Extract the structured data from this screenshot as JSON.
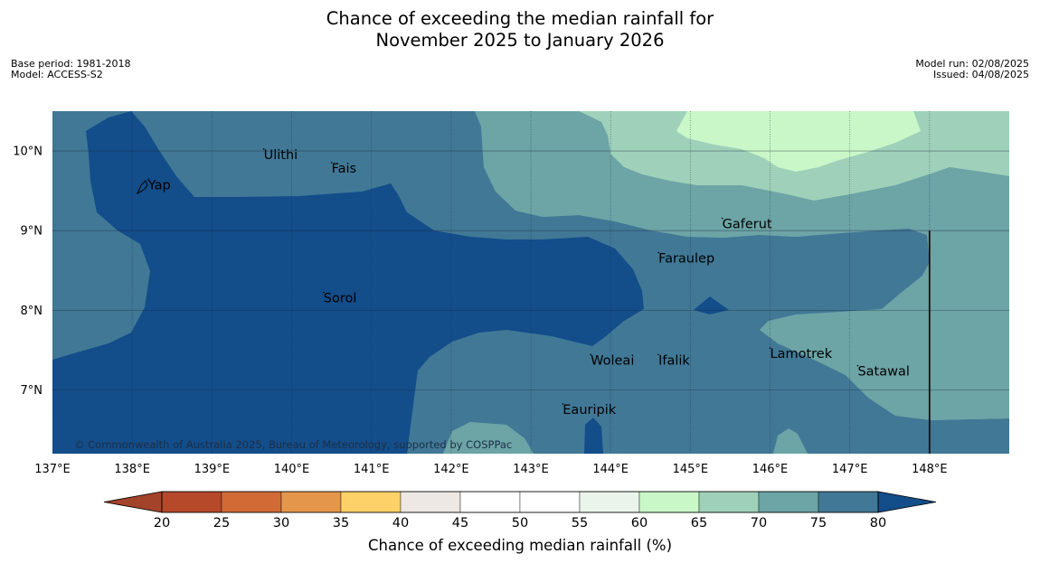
{
  "title": {
    "line1": "Chance of exceeding the median rainfall for",
    "line2": "November 2025 to January 2026"
  },
  "meta_left": [
    "Base period: 1981-2018",
    "Model: ACCESS-S2"
  ],
  "meta_right": [
    "Model run: 02/08/2025",
    "Issued: 04/08/2025"
  ],
  "map": {
    "lon_range": [
      137,
      149
    ],
    "lat_range": [
      6.2,
      10.5
    ],
    "lon_ticks": [
      {
        "value": 137,
        "label": "137°E"
      },
      {
        "value": 138,
        "label": "138°E"
      },
      {
        "value": 139,
        "label": "139°E"
      },
      {
        "value": 140,
        "label": "140°E"
      },
      {
        "value": 141,
        "label": "141°E"
      },
      {
        "value": 142,
        "label": "142°E"
      },
      {
        "value": 143,
        "label": "143°E"
      },
      {
        "value": 144,
        "label": "144°E"
      },
      {
        "value": 145,
        "label": "145°E"
      },
      {
        "value": 146,
        "label": "146°E"
      },
      {
        "value": 147,
        "label": "147°E"
      },
      {
        "value": 148,
        "label": "148°E"
      }
    ],
    "lat_ticks": [
      {
        "value": 10,
        "label": "10°N"
      },
      {
        "value": 9,
        "label": "9°N"
      },
      {
        "value": 8,
        "label": "8°N"
      },
      {
        "value": 7,
        "label": "7°N"
      }
    ],
    "places": [
      {
        "name": "Yap",
        "lon": 138.2,
        "lat": 9.52
      },
      {
        "name": "Ulithi",
        "lon": 139.65,
        "lat": 9.9
      },
      {
        "name": "Fais",
        "lon": 140.5,
        "lat": 9.73
      },
      {
        "name": "Gaferut",
        "lon": 145.4,
        "lat": 9.03
      },
      {
        "name": "Faraulep",
        "lon": 144.6,
        "lat": 8.6
      },
      {
        "name": "Sorol",
        "lon": 140.4,
        "lat": 8.1
      },
      {
        "name": "Lamotrek",
        "lon": 146.0,
        "lat": 7.4
      },
      {
        "name": "Woleai",
        "lon": 143.75,
        "lat": 7.32
      },
      {
        "name": "Ifalik",
        "lon": 144.6,
        "lat": 7.32
      },
      {
        "name": "Satawal",
        "lon": 147.1,
        "lat": 7.18
      },
      {
        "name": "Eauripik",
        "lon": 143.4,
        "lat": 6.7
      }
    ],
    "boundary_line": {
      "lon": 148,
      "lat_from": 6.2,
      "lat_to": 9.0
    },
    "copyright": "© Commonwealth of Australia 2025, Bureau of Meteorology, supported by COSPPac"
  },
  "colors": {
    "c65_70": "#c9f7c8",
    "c60_65": "#9fd1ba",
    "c55_60": "#6da4a6",
    "c50_55": "#417896",
    "c75_80": "#134d8a",
    "above80": "#0f4f86"
  },
  "colorbar": {
    "ticks": [
      20,
      25,
      30,
      35,
      40,
      45,
      50,
      55,
      60,
      65,
      70,
      75,
      80
    ],
    "colors": [
      "#b5492a",
      "#d26a35",
      "#e4974a",
      "#fed168",
      "#ede8e4",
      "#ffffff",
      "#ffffff",
      "#ebf4ea",
      "#c9f7c8",
      "#9fd1ba",
      "#6da4a6",
      "#417896"
    ],
    "under_color": "#a3432a",
    "over_color": "#134d8a",
    "label": "Chance of exceeding median rainfall (%)"
  }
}
